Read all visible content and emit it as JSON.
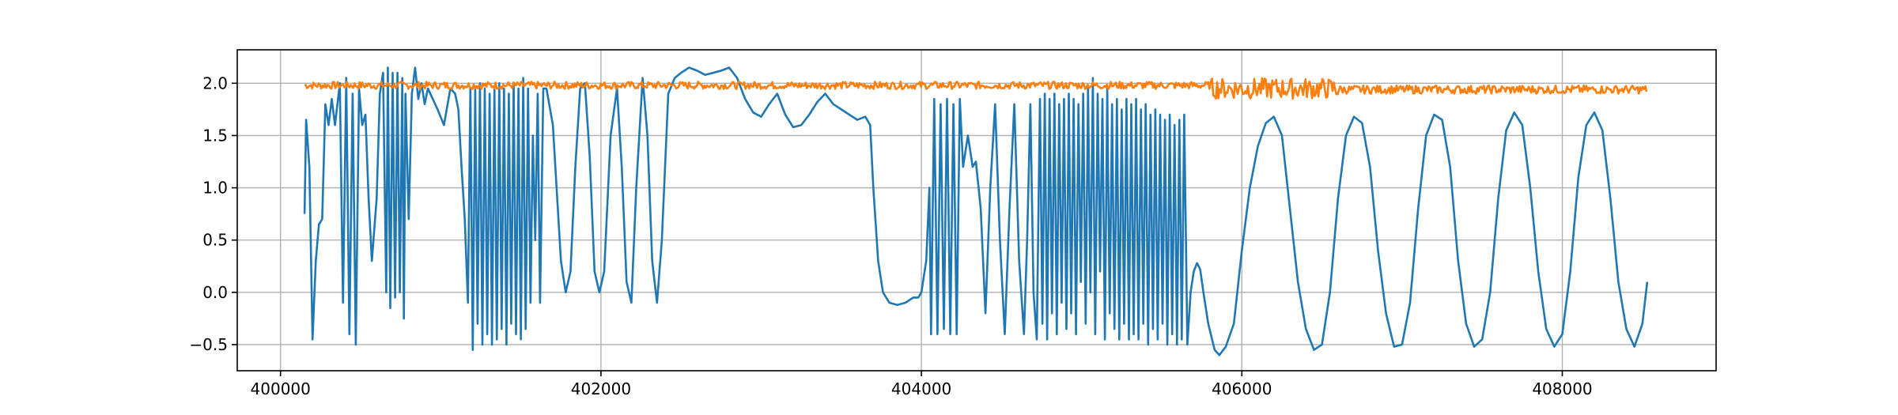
{
  "chart_data": {
    "type": "line",
    "title": "",
    "xlabel": "",
    "ylabel": "",
    "xlim": [
      399730,
      408960
    ],
    "ylim": [
      -0.75,
      2.32
    ],
    "grid": true,
    "x_ticks": [
      400000,
      402000,
      404000,
      406000,
      408000
    ],
    "x_tick_labels": [
      "400000",
      "402000",
      "404000",
      "406000",
      "408000"
    ],
    "y_ticks": [
      -0.5,
      0.0,
      0.5,
      1.0,
      1.5,
      2.0
    ],
    "y_tick_labels": [
      "−0.5",
      "0.0",
      "0.5",
      "1.0",
      "1.5",
      "2.0"
    ],
    "series": [
      {
        "color": "#1f77b4",
        "points": [
          [
            400150,
            0.75
          ],
          [
            400160,
            1.65
          ],
          [
            400180,
            1.2
          ],
          [
            400200,
            -0.45
          ],
          [
            400220,
            0.3
          ],
          [
            400240,
            0.65
          ],
          [
            400260,
            0.7
          ],
          [
            400280,
            1.8
          ],
          [
            400300,
            1.6
          ],
          [
            400320,
            1.85
          ],
          [
            400340,
            1.6
          ],
          [
            400370,
            2.0
          ],
          [
            400390,
            -0.1
          ],
          [
            400410,
            2.05
          ],
          [
            400430,
            -0.4
          ],
          [
            400450,
            1.9
          ],
          [
            400470,
            -0.5
          ],
          [
            400490,
            1.95
          ],
          [
            400510,
            1.6
          ],
          [
            400530,
            1.7
          ],
          [
            400550,
            0.9
          ],
          [
            400570,
            0.3
          ],
          [
            400600,
            0.9
          ],
          [
            400620,
            1.9
          ],
          [
            400640,
            2.1
          ],
          [
            400660,
            0.0
          ],
          [
            400670,
            2.15
          ],
          [
            400685,
            -0.15
          ],
          [
            400700,
            2.1
          ],
          [
            400715,
            -0.05
          ],
          [
            400730,
            2.1
          ],
          [
            400745,
            0.0
          ],
          [
            400760,
            2.05
          ],
          [
            400770,
            -0.25
          ],
          [
            400780,
            1.9
          ],
          [
            400800,
            0.7
          ],
          [
            400820,
            1.9
          ],
          [
            400840,
            2.15
          ],
          [
            400860,
            1.85
          ],
          [
            400880,
            2.0
          ],
          [
            400900,
            1.8
          ],
          [
            400920,
            1.95
          ],
          [
            400950,
            1.85
          ],
          [
            400980,
            1.75
          ],
          [
            401020,
            1.6
          ],
          [
            401060,
            1.95
          ],
          [
            401090,
            1.9
          ],
          [
            401110,
            1.75
          ],
          [
            401130,
            1.2
          ],
          [
            401150,
            0.7
          ],
          [
            401170,
            -0.1
          ],
          [
            401185,
            1.95
          ],
          [
            401200,
            -0.55
          ],
          [
            401215,
            1.95
          ],
          [
            401230,
            -0.3
          ],
          [
            401245,
            2.0
          ],
          [
            401260,
            -0.5
          ],
          [
            401275,
            1.95
          ],
          [
            401290,
            -0.4
          ],
          [
            401305,
            1.9
          ],
          [
            401320,
            -0.5
          ],
          [
            401335,
            1.95
          ],
          [
            401350,
            -0.45
          ],
          [
            401365,
            2.0
          ],
          [
            401380,
            -0.35
          ],
          [
            401395,
            1.95
          ],
          [
            401410,
            -0.5
          ],
          [
            401425,
            1.9
          ],
          [
            401440,
            -0.3
          ],
          [
            401455,
            2.0
          ],
          [
            401470,
            -0.4
          ],
          [
            401485,
            1.95
          ],
          [
            401500,
            -0.45
          ],
          [
            401515,
            2.05
          ],
          [
            401530,
            -0.35
          ],
          [
            401545,
            1.95
          ],
          [
            401560,
            -0.1
          ],
          [
            401575,
            1.5
          ],
          [
            401590,
            0.5
          ],
          [
            401605,
            1.9
          ],
          [
            401620,
            -0.1
          ],
          [
            401640,
            1.95
          ],
          [
            401660,
            1.95
          ],
          [
            401700,
            1.6
          ],
          [
            401750,
            0.3
          ],
          [
            401780,
            0.0
          ],
          [
            401810,
            0.2
          ],
          [
            401840,
            1.2
          ],
          [
            401870,
            1.95
          ],
          [
            401900,
            2.0
          ],
          [
            401930,
            1.3
          ],
          [
            401960,
            0.2
          ],
          [
            401990,
            0.0
          ],
          [
            402020,
            0.2
          ],
          [
            402060,
            1.5
          ],
          [
            402100,
            1.95
          ],
          [
            402130,
            1.2
          ],
          [
            402160,
            0.1
          ],
          [
            402190,
            -0.1
          ],
          [
            402220,
            1.0
          ],
          [
            402260,
            2.05
          ],
          [
            402290,
            1.5
          ],
          [
            402320,
            0.3
          ],
          [
            402350,
            -0.1
          ],
          [
            402380,
            0.5
          ],
          [
            402420,
            1.9
          ],
          [
            402460,
            2.05
          ],
          [
            402500,
            2.1
          ],
          [
            402550,
            2.15
          ],
          [
            402600,
            2.12
          ],
          [
            402650,
            2.08
          ],
          [
            402700,
            2.1
          ],
          [
            402750,
            2.12
          ],
          [
            402800,
            2.15
          ],
          [
            402850,
            2.05
          ],
          [
            402900,
            1.85
          ],
          [
            402950,
            1.72
          ],
          [
            403000,
            1.68
          ],
          [
            403050,
            1.8
          ],
          [
            403100,
            1.9
          ],
          [
            403150,
            1.7
          ],
          [
            403200,
            1.58
          ],
          [
            403250,
            1.6
          ],
          [
            403300,
            1.7
          ],
          [
            403350,
            1.82
          ],
          [
            403400,
            1.9
          ],
          [
            403450,
            1.8
          ],
          [
            403500,
            1.75
          ],
          [
            403550,
            1.7
          ],
          [
            403600,
            1.65
          ],
          [
            403650,
            1.68
          ],
          [
            403680,
            1.6
          ],
          [
            403700,
            1.0
          ],
          [
            403730,
            0.3
          ],
          [
            403760,
            0.0
          ],
          [
            403800,
            -0.1
          ],
          [
            403850,
            -0.12
          ],
          [
            403900,
            -0.1
          ],
          [
            403950,
            -0.05
          ],
          [
            403980,
            -0.05
          ],
          [
            404000,
            0.0
          ],
          [
            404030,
            0.3
          ],
          [
            404050,
            1.0
          ],
          [
            404060,
            -0.4
          ],
          [
            404080,
            1.85
          ],
          [
            404100,
            -0.4
          ],
          [
            404120,
            1.8
          ],
          [
            404140,
            -0.35
          ],
          [
            404160,
            1.85
          ],
          [
            404180,
            -0.4
          ],
          [
            404200,
            1.8
          ],
          [
            404220,
            -0.4
          ],
          [
            404240,
            1.85
          ],
          [
            404260,
            1.2
          ],
          [
            404290,
            1.5
          ],
          [
            404320,
            1.2
          ],
          [
            404340,
            1.25
          ],
          [
            404370,
            0.8
          ],
          [
            404400,
            -0.2
          ],
          [
            404430,
            1.0
          ],
          [
            404460,
            1.8
          ],
          [
            404490,
            0.5
          ],
          [
            404520,
            -0.4
          ],
          [
            404550,
            0.8
          ],
          [
            404580,
            1.8
          ],
          [
            404610,
            0.3
          ],
          [
            404640,
            -0.4
          ],
          [
            404660,
            0.5
          ],
          [
            404680,
            1.8
          ],
          [
            404700,
            0.0
          ],
          [
            404720,
            -0.45
          ],
          [
            404740,
            1.85
          ],
          [
            404755,
            -0.3
          ],
          [
            404770,
            1.9
          ],
          [
            404785,
            -0.45
          ],
          [
            404800,
            1.85
          ],
          [
            404815,
            -0.2
          ],
          [
            404830,
            1.9
          ],
          [
            404845,
            -0.4
          ],
          [
            404860,
            1.8
          ],
          [
            404875,
            -0.1
          ],
          [
            404890,
            1.85
          ],
          [
            404905,
            -0.35
          ],
          [
            404920,
            1.9
          ],
          [
            404935,
            -0.2
          ],
          [
            404950,
            1.85
          ],
          [
            404965,
            -0.4
          ],
          [
            404980,
            1.8
          ],
          [
            404995,
            0.1
          ],
          [
            405010,
            1.9
          ],
          [
            405025,
            -0.3
          ],
          [
            405040,
            1.95
          ],
          [
            405055,
            0.0
          ],
          [
            405070,
            2.05
          ],
          [
            405085,
            -0.4
          ],
          [
            405100,
            1.9
          ],
          [
            405115,
            0.2
          ],
          [
            405130,
            1.85
          ],
          [
            405145,
            -0.45
          ],
          [
            405160,
            1.95
          ],
          [
            405175,
            -0.2
          ],
          [
            405190,
            1.8
          ],
          [
            405205,
            -0.35
          ],
          [
            405220,
            1.85
          ],
          [
            405235,
            -0.45
          ],
          [
            405250,
            1.75
          ],
          [
            405265,
            -0.3
          ],
          [
            405280,
            1.85
          ],
          [
            405295,
            -0.45
          ],
          [
            405310,
            1.8
          ],
          [
            405325,
            -0.4
          ],
          [
            405340,
            1.85
          ],
          [
            405355,
            -0.45
          ],
          [
            405370,
            1.75
          ],
          [
            405385,
            -0.3
          ],
          [
            405400,
            1.8
          ],
          [
            405415,
            -0.5
          ],
          [
            405430,
            1.7
          ],
          [
            405445,
            -0.35
          ],
          [
            405460,
            1.75
          ],
          [
            405475,
            -0.45
          ],
          [
            405490,
            1.7
          ],
          [
            405505,
            -0.3
          ],
          [
            405520,
            1.65
          ],
          [
            405535,
            -0.5
          ],
          [
            405550,
            1.7
          ],
          [
            405565,
            -0.4
          ],
          [
            405580,
            1.6
          ],
          [
            405595,
            -0.5
          ],
          [
            405610,
            1.65
          ],
          [
            405625,
            -0.45
          ],
          [
            405640,
            1.7
          ],
          [
            405660,
            -0.5
          ],
          [
            405680,
            0.0
          ],
          [
            405700,
            0.2
          ],
          [
            405720,
            0.28
          ],
          [
            405740,
            0.22
          ],
          [
            405760,
            0.0
          ],
          [
            405790,
            -0.3
          ],
          [
            405830,
            -0.55
          ],
          [
            405860,
            -0.6
          ],
          [
            405900,
            -0.52
          ],
          [
            405950,
            -0.3
          ],
          [
            406000,
            0.4
          ],
          [
            406050,
            1.0
          ],
          [
            406100,
            1.4
          ],
          [
            406150,
            1.62
          ],
          [
            406200,
            1.68
          ],
          [
            406250,
            1.5
          ],
          [
            406300,
            0.8
          ],
          [
            406350,
            0.1
          ],
          [
            406400,
            -0.35
          ],
          [
            406450,
            -0.55
          ],
          [
            406500,
            -0.5
          ],
          [
            406550,
            0.0
          ],
          [
            406600,
            0.9
          ],
          [
            406650,
            1.5
          ],
          [
            406700,
            1.68
          ],
          [
            406750,
            1.62
          ],
          [
            406800,
            1.2
          ],
          [
            406850,
            0.4
          ],
          [
            406900,
            -0.2
          ],
          [
            406950,
            -0.52
          ],
          [
            407000,
            -0.5
          ],
          [
            407050,
            -0.1
          ],
          [
            407100,
            0.8
          ],
          [
            407150,
            1.5
          ],
          [
            407200,
            1.7
          ],
          [
            407250,
            1.65
          ],
          [
            407300,
            1.2
          ],
          [
            407350,
            0.3
          ],
          [
            407400,
            -0.3
          ],
          [
            407450,
            -0.52
          ],
          [
            407500,
            -0.45
          ],
          [
            407550,
            0.0
          ],
          [
            407600,
            0.9
          ],
          [
            407650,
            1.55
          ],
          [
            407700,
            1.72
          ],
          [
            407750,
            1.6
          ],
          [
            407800,
            1.0
          ],
          [
            407850,
            0.2
          ],
          [
            407900,
            -0.35
          ],
          [
            407950,
            -0.52
          ],
          [
            408000,
            -0.4
          ],
          [
            408050,
            0.2
          ],
          [
            408100,
            1.1
          ],
          [
            408150,
            1.6
          ],
          [
            408200,
            1.72
          ],
          [
            408250,
            1.55
          ],
          [
            408300,
            0.9
          ],
          [
            408350,
            0.1
          ],
          [
            408400,
            -0.35
          ],
          [
            408450,
            -0.52
          ],
          [
            408500,
            -0.3
          ],
          [
            408530,
            0.1
          ]
        ]
      },
      {
        "color": "#ff7f0e",
        "x_start": 400150,
        "x_end": 408530,
        "baseline": 1.97,
        "segments": [
          {
            "x_from": 400150,
            "x_to": 405800,
            "level": 1.98,
            "amplitude": 0.035
          },
          {
            "x_from": 405800,
            "x_to": 406600,
            "level": 1.95,
            "amplitude": 0.1
          },
          {
            "x_from": 406600,
            "x_to": 408530,
            "level": 1.94,
            "amplitude": 0.04
          }
        ]
      }
    ]
  }
}
